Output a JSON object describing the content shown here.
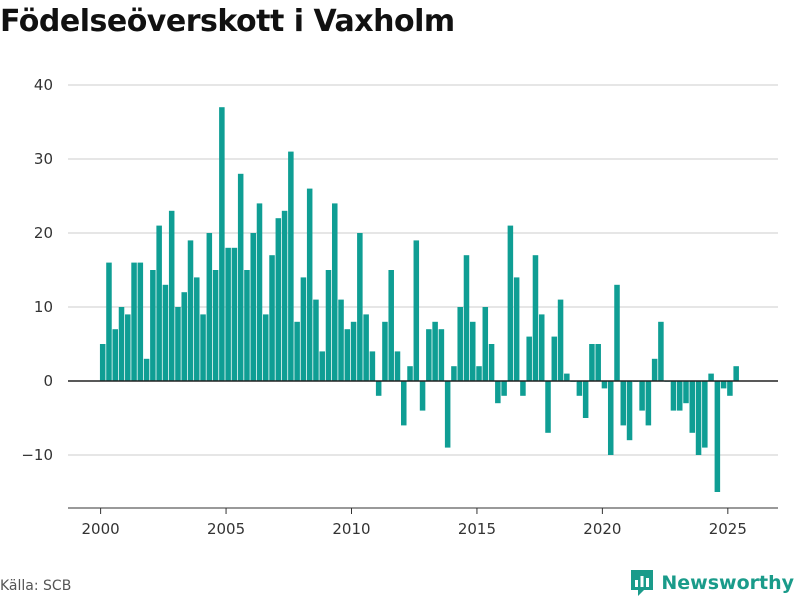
{
  "title": "Födelseöverskott i Vaxholm",
  "source": "Källa: SCB",
  "brand": {
    "name": "Newsworthy",
    "icon": "bar-chart-logo-icon"
  },
  "colors": {
    "bar": "#0f9e94",
    "grid": "#dddddd",
    "baseline": "#222222",
    "brand": "#1a9b8a"
  },
  "chart_data": {
    "type": "bar",
    "title": "Födelseöverskott i Vaxholm",
    "xlabel": "",
    "ylabel": "",
    "ylim": [
      -17,
      42
    ],
    "xlim": [
      1998.7,
      2027.0
    ],
    "y_ticks": [
      40,
      30,
      20,
      10,
      0,
      -10
    ],
    "y_tick_labels": [
      "40",
      "30",
      "20",
      "10",
      "0",
      "−10"
    ],
    "x_ticks": [
      2000,
      2005,
      2010,
      2015,
      2020,
      2025
    ],
    "x_tick_labels": [
      "2000",
      "2005",
      "2010",
      "2015",
      "2020",
      "2025"
    ],
    "grid": true,
    "frequency": "quarterly",
    "start": 2000.083,
    "step": 0.25,
    "values": [
      5,
      16,
      7,
      10,
      9,
      16,
      16,
      3,
      15,
      21,
      13,
      23,
      10,
      12,
      19,
      14,
      9,
      20,
      15,
      37,
      18,
      18,
      28,
      15,
      20,
      24,
      9,
      17,
      22,
      23,
      31,
      8,
      14,
      26,
      11,
      4,
      15,
      24,
      11,
      7,
      8,
      20,
      9,
      4,
      -2,
      8,
      15,
      4,
      -6,
      2,
      19,
      -4,
      7,
      8,
      7,
      -9,
      2,
      10,
      17,
      8,
      2,
      10,
      5,
      -3,
      -2,
      21,
      14,
      -2,
      6,
      17,
      9,
      -7,
      6,
      11,
      1,
      0,
      -2,
      -5,
      5,
      5,
      -1,
      -10,
      13,
      -6,
      -8,
      0,
      -4,
      -6,
      3,
      8,
      0,
      -4,
      -4,
      -3,
      -7,
      -10,
      -9,
      1,
      -15,
      -1,
      -2,
      2
    ]
  }
}
